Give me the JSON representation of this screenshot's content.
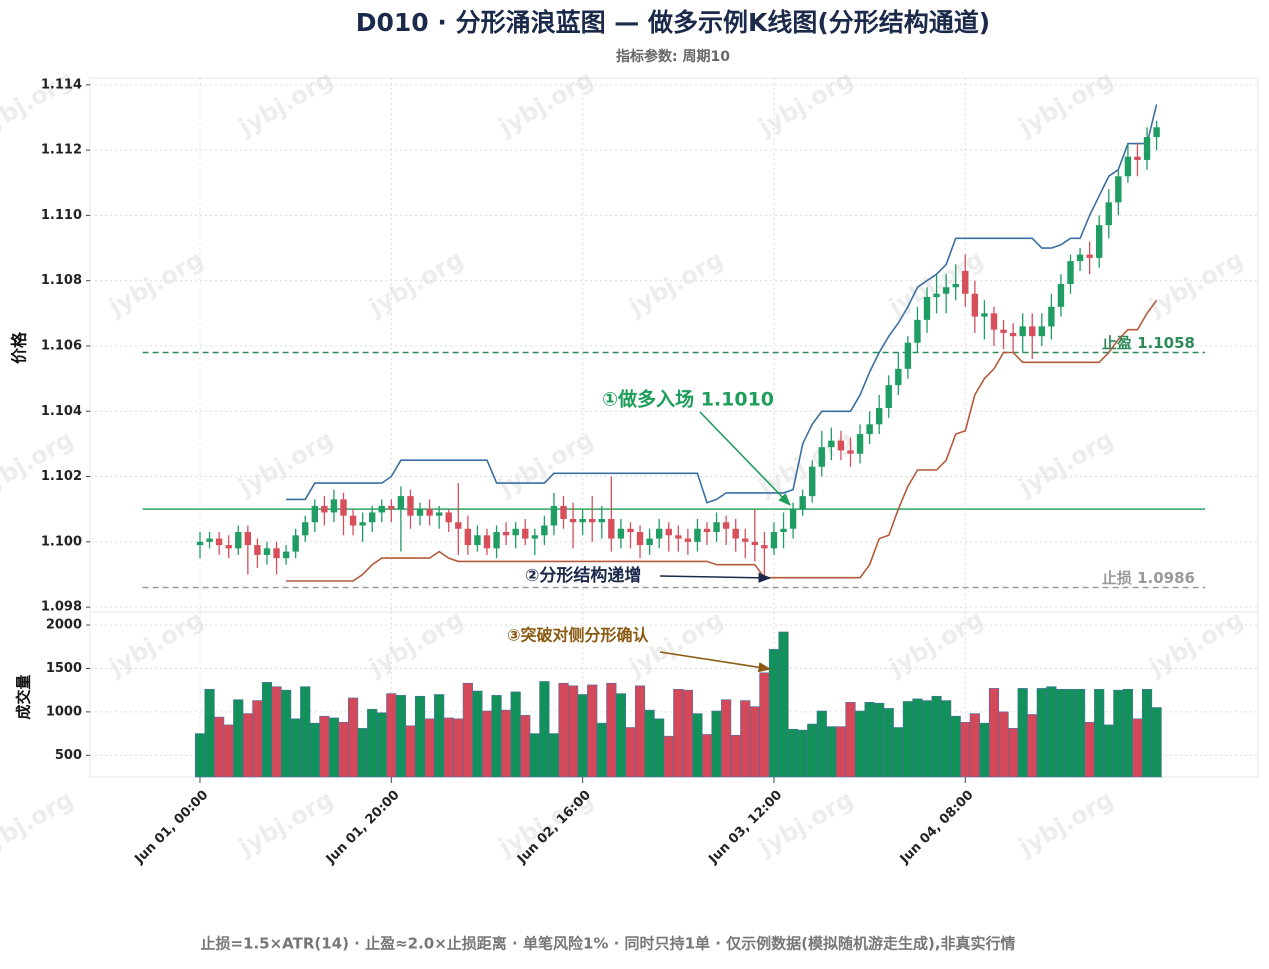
{
  "chart_data": {
    "type": "candlestick",
    "title": "D010 · 分形涌浪蓝图 — 做多示例K线图(分形结构通道)",
    "subtitle": "指标参数: 周期10",
    "ylabel": "价格",
    "footer": "止损=1.5×ATR(14) · 止盈≈2.0×止损距离 · 单笔风险1% · 同时只持1单 · 仅示例数据(模拟随机游走生成),非真实行情",
    "watermark": "jybj.org",
    "grid": true,
    "up_color": "#1f9d63",
    "down_color": "#d64f5b",
    "x": [
      0,
      1,
      2,
      3,
      4,
      5,
      6,
      7,
      8,
      9,
      10,
      11,
      12,
      13,
      14,
      15,
      16,
      17,
      18,
      19,
      20,
      21,
      22,
      23,
      24,
      25,
      26,
      27,
      28,
      29,
      30,
      31,
      32,
      33,
      34,
      35,
      36,
      37,
      38,
      39,
      40,
      41,
      42,
      43,
      44,
      45,
      46,
      47,
      48,
      49,
      50,
      51,
      52,
      53,
      54,
      55,
      56,
      57,
      58,
      59,
      60,
      61,
      62,
      63,
      64,
      65,
      66,
      67,
      68,
      69,
      70,
      71,
      72,
      73,
      74,
      75,
      76,
      77,
      78,
      79,
      80,
      81,
      82,
      83,
      84,
      85,
      86,
      87,
      88,
      89,
      90,
      91,
      92,
      93,
      94,
      95,
      96,
      97,
      98,
      99,
      100
    ],
    "xlim": [
      -11.5,
      110.6
    ],
    "xticks": [
      {
        "value": 0,
        "label": "Jun 01, 00:00"
      },
      {
        "value": 20,
        "label": "Jun 01, 20:00"
      },
      {
        "value": 40,
        "label": "Jun 02, 16:00"
      },
      {
        "value": 60,
        "label": "Jun 03, 12:00"
      },
      {
        "value": 80,
        "label": "Jun 04, 08:00"
      }
    ],
    "ylim": [
      1.09785,
      1.11421
    ],
    "yticks": [
      {
        "value": 1.098,
        "label": "1.098"
      },
      {
        "value": 1.1,
        "label": "1.100"
      },
      {
        "value": 1.102,
        "label": "1.102"
      },
      {
        "value": 1.104,
        "label": "1.104"
      },
      {
        "value": 1.106,
        "label": "1.106"
      },
      {
        "value": 1.108,
        "label": "1.108"
      },
      {
        "value": 1.11,
        "label": "1.110"
      },
      {
        "value": 1.112,
        "label": "1.112"
      },
      {
        "value": 1.114,
        "label": "1.114"
      }
    ],
    "open": [
      1.0999,
      1.1,
      1.1001,
      1.0999,
      1.0998,
      1.1003,
      1.0999,
      1.0996,
      1.0998,
      1.0995,
      1.0997,
      1.1002,
      1.1006,
      1.1011,
      1.1009,
      1.1013,
      1.1008,
      1.1005,
      1.1006,
      1.1009,
      1.1011,
      1.101,
      1.1014,
      1.1008,
      1.101,
      1.1008,
      1.1009,
      1.1006,
      1.1004,
      1.0999,
      1.1002,
      1.0998,
      1.1003,
      1.1002,
      1.1004,
      1.1001,
      1.1002,
      1.1005,
      1.1011,
      1.1007,
      1.1006,
      1.1007,
      1.1006,
      1.1007,
      1.1001,
      1.1004,
      1.1003,
      1.0999,
      1.1001,
      1.1004,
      1.1002,
      1.1001,
      1.1,
      1.1004,
      1.1003,
      1.1006,
      1.1004,
      1.1001,
      1.1,
      1.0999,
      1.0998,
      1.1003,
      1.1004,
      1.101,
      1.1014,
      1.1023,
      1.1029,
      1.1031,
      1.1028,
      1.1027,
      1.1033,
      1.1036,
      1.1041,
      1.1048,
      1.1053,
      1.1061,
      1.1068,
      1.1075,
      1.1076,
      1.1078,
      1.1083,
      1.1076,
      1.1069,
      1.107,
      1.1065,
      1.1064,
      1.1063,
      1.1066,
      1.1063,
      1.1066,
      1.1072,
      1.1079,
      1.1086,
      1.1088,
      1.1087,
      1.1097,
      1.1104,
      1.1112,
      1.1118,
      1.1117,
      1.1124
    ],
    "high": [
      1.1003,
      1.1003,
      1.1003,
      1.1002,
      1.1005,
      1.1005,
      1.1001,
      1.1,
      1.1,
      1.0999,
      1.1004,
      1.1008,
      1.1013,
      1.1014,
      1.1016,
      1.1015,
      1.101,
      1.1009,
      1.1011,
      1.1013,
      1.1013,
      1.1017,
      1.1016,
      1.1012,
      1.1013,
      1.1011,
      1.101,
      1.1018,
      1.1008,
      1.1005,
      1.1004,
      1.1005,
      1.1006,
      1.1006,
      1.1007,
      1.1004,
      1.1008,
      1.1015,
      1.1014,
      1.1012,
      1.101,
      1.1014,
      1.1011,
      1.102,
      1.1007,
      1.1006,
      1.1005,
      1.1004,
      1.1007,
      1.1006,
      1.1005,
      1.1004,
      1.1007,
      1.1006,
      1.1009,
      1.1008,
      1.1007,
      1.1004,
      1.101,
      1.1003,
      1.1006,
      1.1009,
      1.1012,
      1.1016,
      1.1025,
      1.1034,
      1.1035,
      1.1034,
      1.1032,
      1.1036,
      1.104,
      1.1045,
      1.1051,
      1.1058,
      1.1063,
      1.1072,
      1.1078,
      1.1082,
      1.1082,
      1.1085,
      1.1088,
      1.108,
      1.1074,
      1.1072,
      1.1068,
      1.1067,
      1.107,
      1.107,
      1.107,
      1.1076,
      1.1082,
      1.1088,
      1.109,
      1.1092,
      1.11,
      1.1108,
      1.1114,
      1.1122,
      1.1122,
      1.1127,
      1.1129
    ],
    "low": [
      1.0995,
      1.0998,
      1.0996,
      1.0995,
      1.0996,
      1.099,
      1.0992,
      1.0993,
      1.099,
      1.0993,
      1.0995,
      1.1,
      1.1003,
      1.1005,
      1.1006,
      1.1002,
      1.1002,
      1.1,
      1.1003,
      1.1006,
      1.1006,
      1.0997,
      1.1004,
      1.1005,
      1.1005,
      1.1004,
      1.1003,
      1.0996,
      1.0996,
      1.0997,
      1.0996,
      1.0995,
      1.0999,
      1.0998,
      1.0999,
      1.0996,
      1.0999,
      1.1002,
      1.1004,
      1.0998,
      1.1002,
      1.1,
      1.1001,
      1.0997,
      1.0998,
      1.0998,
      1.0995,
      1.0996,
      1.0998,
      1.0997,
      1.0997,
      1.0996,
      1.0997,
      1.0999,
      1.1,
      1.0999,
      1.0997,
      1.0995,
      1.0994,
      1.0989,
      1.0996,
      1.0998,
      1.1001,
      1.1008,
      1.1012,
      1.102,
      1.1025,
      1.1025,
      1.1023,
      1.1024,
      1.103,
      1.1033,
      1.1038,
      1.1045,
      1.105,
      1.1058,
      1.1064,
      1.107,
      1.107,
      1.1074,
      1.1072,
      1.1064,
      1.1062,
      1.106,
      1.1059,
      1.1058,
      1.1058,
      1.1056,
      1.106,
      1.1062,
      1.1069,
      1.1076,
      1.1083,
      1.1082,
      1.1084,
      1.1093,
      1.11,
      1.111,
      1.1112,
      1.1114,
      1.112
    ],
    "close": [
      1.1,
      1.1001,
      1.0999,
      1.0998,
      1.1003,
      1.0999,
      1.0996,
      1.0998,
      1.0995,
      1.0997,
      1.1002,
      1.1006,
      1.1011,
      1.1009,
      1.1013,
      1.1008,
      1.1005,
      1.1006,
      1.1009,
      1.1011,
      1.101,
      1.1014,
      1.1008,
      1.101,
      1.1008,
      1.1009,
      1.1006,
      1.1004,
      1.0999,
      1.1002,
      1.0998,
      1.1003,
      1.1002,
      1.1004,
      1.1001,
      1.1002,
      1.1005,
      1.1011,
      1.1007,
      1.1006,
      1.1007,
      1.1006,
      1.1007,
      1.1001,
      1.1004,
      1.1003,
      1.0999,
      1.1001,
      1.1004,
      1.1002,
      1.1001,
      1.1,
      1.1004,
      1.1003,
      1.1006,
      1.1004,
      1.1001,
      1.1,
      1.0999,
      1.0998,
      1.1003,
      1.1004,
      1.101,
      1.1014,
      1.1023,
      1.1029,
      1.1031,
      1.1028,
      1.1027,
      1.1033,
      1.1036,
      1.1041,
      1.1048,
      1.1053,
      1.1061,
      1.1068,
      1.1075,
      1.1076,
      1.1078,
      1.1079,
      1.1076,
      1.1069,
      1.107,
      1.1065,
      1.1064,
      1.1063,
      1.1066,
      1.1063,
      1.1066,
      1.1072,
      1.1079,
      1.1086,
      1.1088,
      1.1087,
      1.1097,
      1.1104,
      1.1112,
      1.1118,
      1.1117,
      1.1124,
      1.1127
    ],
    "channel": [
      {
        "color": "#3b6fa0",
        "values": [
          null,
          null,
          null,
          null,
          null,
          null,
          null,
          null,
          null,
          1.1013,
          1.1013,
          1.1013,
          1.1018,
          1.1018,
          1.1018,
          1.1018,
          1.1018,
          1.1018,
          1.1018,
          1.1018,
          1.102,
          1.1025,
          1.1025,
          1.1025,
          1.1025,
          1.1025,
          1.1025,
          1.1025,
          1.1025,
          1.1025,
          1.1025,
          1.1018,
          1.1018,
          1.1018,
          1.1018,
          1.1018,
          1.1018,
          1.1021,
          1.1021,
          1.1021,
          1.1021,
          1.1021,
          1.1021,
          1.1021,
          1.1021,
          1.1021,
          1.1021,
          1.1021,
          1.1021,
          1.1021,
          1.1021,
          1.1021,
          1.1021,
          1.1012,
          1.1013,
          1.1015,
          1.1015,
          1.1015,
          1.1015,
          1.1015,
          1.1015,
          1.1015,
          1.1016,
          1.103,
          1.1036,
          1.104,
          1.104,
          1.104,
          1.104,
          1.1045,
          1.1052,
          1.1058,
          1.1063,
          1.1067,
          1.1072,
          1.1078,
          1.108,
          1.1082,
          1.1085,
          1.1093,
          1.1093,
          1.1093,
          1.1093,
          1.1093,
          1.1093,
          1.1093,
          1.1093,
          1.1093,
          1.109,
          1.109,
          1.1091,
          1.1093,
          1.1093,
          1.11,
          1.1106,
          1.1112,
          1.1114,
          1.1122,
          1.1122,
          1.1122,
          1.1134
        ]
      },
      {
        "color": "#b35a3a",
        "values": [
          null,
          null,
          null,
          null,
          null,
          null,
          null,
          null,
          null,
          1.0988,
          1.0988,
          1.0988,
          1.0988,
          1.0988,
          1.0988,
          1.0988,
          1.0988,
          1.099,
          1.0993,
          1.0995,
          1.0995,
          1.0995,
          1.0995,
          1.0995,
          1.0995,
          1.0997,
          1.0995,
          1.0994,
          1.0994,
          1.0994,
          1.0994,
          1.0994,
          1.0994,
          1.0994,
          1.0994,
          1.0994,
          1.0994,
          1.0994,
          1.0994,
          1.0994,
          1.0994,
          1.0994,
          1.0994,
          1.0994,
          1.0994,
          1.0994,
          1.0994,
          1.0994,
          1.0994,
          1.0994,
          1.0994,
          1.0994,
          1.0994,
          1.0994,
          1.0993,
          1.0993,
          1.0993,
          1.0993,
          1.0993,
          1.0989,
          1.0989,
          1.0989,
          1.0989,
          1.0989,
          1.0989,
          1.0989,
          1.0989,
          1.0989,
          1.0989,
          1.0989,
          1.0993,
          1.1001,
          1.1002,
          1.101,
          1.1017,
          1.1022,
          1.1022,
          1.1022,
          1.1025,
          1.1033,
          1.1034,
          1.1045,
          1.105,
          1.1053,
          1.1058,
          1.1058,
          1.1055,
          1.1055,
          1.1055,
          1.1055,
          1.1055,
          1.1055,
          1.1055,
          1.1055,
          1.1055,
          1.1058,
          1.1062,
          1.1065,
          1.1065,
          1.107,
          1.1074
        ]
      }
    ],
    "hlines": [
      {
        "value": 1.101,
        "color": "#2ea860",
        "dash": false
      },
      {
        "value": 1.1058,
        "color": "#2e8b57",
        "dash": true,
        "label": "止盈 1.1058"
      },
      {
        "value": 1.0986,
        "color": "#999999",
        "dash": true,
        "label": "止损 1.0986"
      }
    ],
    "annotations": [
      {
        "text": "①做多入场 1.1010",
        "color": "#1f9d5a"
      },
      {
        "text": "②分形结构递增",
        "color": "#1b2a4a"
      },
      {
        "text": "③突破对侧分形确认",
        "color": "#8a5a12"
      }
    ],
    "volume": {
      "ylabel": "成交量",
      "ylim": [
        250,
        2150
      ],
      "yticks": [
        500,
        1000,
        1500,
        2000
      ],
      "values": [
        750,
        1260,
        940,
        850,
        1140,
        980,
        1130,
        1340,
        1290,
        1250,
        920,
        1290,
        870,
        950,
        930,
        880,
        1160,
        810,
        1030,
        990,
        1210,
        1190,
        840,
        1180,
        920,
        1200,
        930,
        920,
        1330,
        1240,
        1010,
        1190,
        1020,
        1230,
        960,
        750,
        1350,
        750,
        1330,
        1300,
        1200,
        1310,
        870,
        1330,
        1210,
        820,
        1300,
        1020,
        920,
        720,
        1260,
        1250,
        980,
        740,
        1010,
        1140,
        730,
        1130,
        1060,
        1450,
        1720,
        1920,
        800,
        790,
        860,
        1010,
        830,
        830,
        1110,
        1010,
        1110,
        1100,
        1040,
        820,
        1120,
        1150,
        1130,
        1180,
        1130,
        950,
        880,
        980,
        870,
        1270,
        1000,
        810,
        1270,
        970,
        1270,
        1290,
        1260,
        1260,
        1260,
        880,
        1260,
        850,
        1250,
        1260,
        920,
        1260,
        1050
      ]
    }
  }
}
